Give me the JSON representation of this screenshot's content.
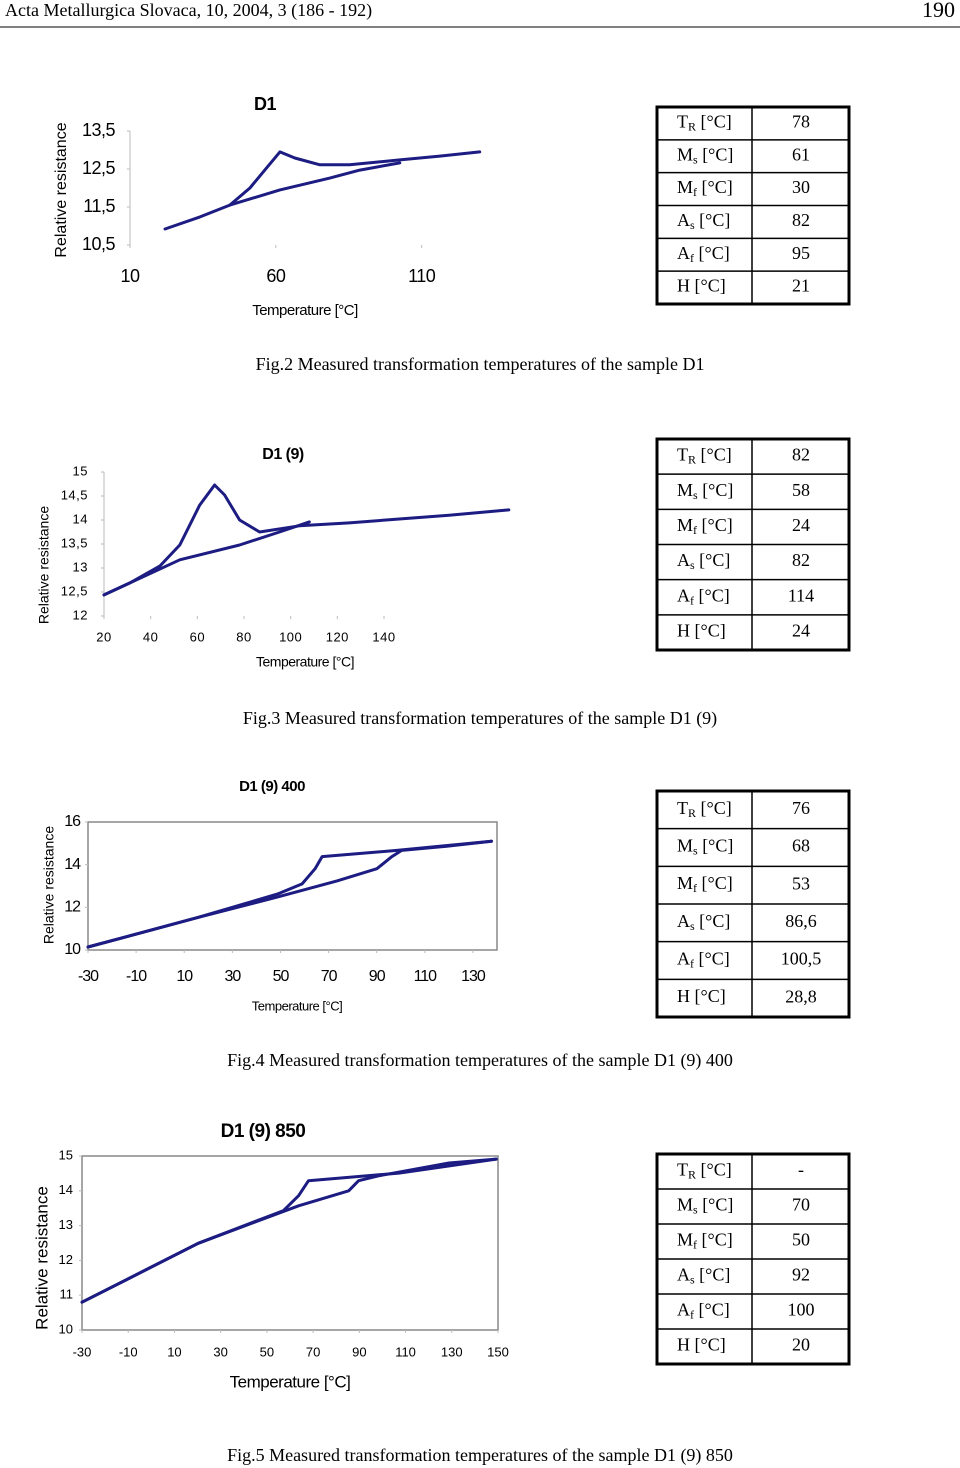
{
  "header": {
    "journal": "Acta Metallurgica Slovaca, 10, 2004, 3 (186 - 192)",
    "page": "190"
  },
  "chart_data": [
    {
      "type": "line",
      "title": "D1",
      "x_label": "Temperature [°C]",
      "y_label": "Relative resistance",
      "xlim": [
        10,
        130
      ],
      "xticks": [
        10,
        60,
        110
      ],
      "ylim": [
        10.5,
        13.5
      ],
      "yticks": [
        {
          "value": 10.5,
          "label": "10,5"
        },
        {
          "value": 11.5,
          "label": "11,5"
        },
        {
          "value": 12.5,
          "label": "12,5"
        },
        {
          "value": 13.5,
          "label": "13,5"
        }
      ],
      "frame": false,
      "series": [
        {
          "color": "#1c1c82",
          "x": [
            22,
            34,
            44.2,
            51.1,
            56.2,
            61.4,
            66.5,
            75.1,
            85.3,
            102.5,
            116.2,
            129.9
          ],
          "values": [
            10.92,
            11.24,
            11.55,
            12.0,
            12.47,
            12.95,
            12.79,
            12.61,
            12.61,
            12.74,
            12.84,
            12.95
          ]
        },
        {
          "color": "#1c1c82",
          "x": [
            44.2,
            61.4,
            78.5,
            88.8,
            102.5
          ],
          "values": [
            11.55,
            11.95,
            12.26,
            12.47,
            12.66
          ]
        }
      ]
    },
    {
      "type": "line",
      "title": "D1 (9)",
      "x_label": "Temperature [°C]",
      "y_label": "Relative resistance",
      "xlim": [
        20,
        194
      ],
      "xticks": [
        20,
        40,
        60,
        80,
        100,
        120,
        140
      ],
      "ylim": [
        12,
        15
      ],
      "yticks": [
        12,
        {
          "value": 12.5,
          "label": "12,5"
        },
        13,
        {
          "value": 13.5,
          "label": "13,5"
        },
        14,
        {
          "value": 14.5,
          "label": "14,5"
        },
        15
      ],
      "frame": false,
      "series": [
        {
          "color": "#1c1c82",
          "x": [
            20,
            31.1,
            43.9,
            52.5,
            61,
            67.4,
            71.7,
            78.1,
            86.7,
            103.8,
            125.1,
            146.5,
            167.9,
            193.5
          ],
          "values": [
            12.44,
            12.69,
            13.04,
            13.48,
            14.31,
            14.73,
            14.52,
            14.0,
            13.75,
            13.88,
            13.94,
            14.02,
            14.1,
            14.21
          ]
        },
        {
          "color": "#1c1c82",
          "x": [
            20,
            52.5,
            78.1,
            95.2,
            108
          ],
          "values": [
            12.44,
            13.17,
            13.48,
            13.75,
            13.96
          ]
        }
      ]
    },
    {
      "type": "line",
      "title": "D1 (9) 400",
      "x_label": "Temperature [°C]",
      "y_label": "Relative resistance",
      "xlim": [
        -30,
        140
      ],
      "xticks": [
        -30,
        -10,
        10,
        30,
        50,
        70,
        90,
        110,
        130
      ],
      "ylim": [
        10,
        16
      ],
      "yticks": [
        10,
        12,
        14,
        16
      ],
      "frame": true,
      "series": [
        {
          "color": "#1c1c82",
          "x": [
            -30,
            15.5,
            48.7,
            73.5,
            90.1,
            96.3,
            100.4,
            119.1,
            137.7
          ],
          "values": [
            10.14,
            11.52,
            12.48,
            13.24,
            13.81,
            14.38,
            14.67,
            14.86,
            15.1
          ]
        },
        {
          "color": "#1c1c82",
          "x": [
            137.7,
            98.4,
            67.3,
            64.4,
            59,
            48.7,
            15.5,
            -30
          ],
          "values": [
            15.1,
            14.67,
            14.38,
            13.81,
            13.1,
            12.62,
            11.52,
            10.14
          ]
        }
      ]
    },
    {
      "type": "line",
      "title": "D1 (9) 850",
      "x_label": "Temperature [°C]",
      "y_label": "Relative resistance",
      "xlim": [
        -30,
        150
      ],
      "xticks": [
        -30,
        -10,
        10,
        30,
        50,
        70,
        90,
        110,
        130,
        150
      ],
      "ylim": [
        10,
        15
      ],
      "yticks": [
        10,
        11,
        12,
        13,
        14,
        15
      ],
      "frame": true,
      "series": [
        {
          "color": "#1c1c82",
          "x": [
            -30,
            20.3,
            63.7,
            85.4,
            89.7,
            98.4,
            128.8,
            149.2
          ],
          "values": [
            10.8,
            12.49,
            13.57,
            14.0,
            14.29,
            14.43,
            14.8,
            14.91
          ]
        },
        {
          "color": "#1c1c82",
          "x": [
            149.2,
            107.1,
            68,
            63.7,
            57.2,
            20.3,
            -30
          ],
          "values": [
            14.91,
            14.51,
            14.29,
            13.86,
            13.43,
            12.49,
            10.8
          ]
        }
      ]
    }
  ],
  "tables": [
    [
      {
        "symbol": "T",
        "sub": "R",
        "unit": " [°C]",
        "value": 78
      },
      {
        "symbol": "M",
        "sub": "s",
        "unit": " [°C]",
        "value": 61
      },
      {
        "symbol": "M",
        "sub": "f",
        "unit": " [°C]",
        "value": 30
      },
      {
        "symbol": "A",
        "sub": "s",
        "unit": " [°C]",
        "value": 82
      },
      {
        "symbol": "A",
        "sub": "f",
        "unit": " [°C]",
        "value": 95
      },
      {
        "symbol": "H",
        "unit": " [°C]",
        "value": 21
      }
    ],
    [
      {
        "symbol": "T",
        "sub": "R",
        "unit": " [°C]",
        "value": 82
      },
      {
        "symbol": "M",
        "sub": "s",
        "unit": " [°C]",
        "value": 58
      },
      {
        "symbol": "M",
        "sub": "f",
        "unit": " [°C]",
        "value": 24
      },
      {
        "symbol": "A",
        "sub": "s",
        "unit": " [°C]",
        "value": 82
      },
      {
        "symbol": "A",
        "sub": "f",
        "unit": " [°C]",
        "value": 114
      },
      {
        "symbol": "H",
        "unit": " [°C]",
        "value": 24
      }
    ],
    [
      {
        "symbol": "T",
        "sub": "R",
        "unit": " [°C]",
        "value": 76
      },
      {
        "symbol": "M",
        "sub": "s",
        "unit": " [°C]",
        "value": 68
      },
      {
        "symbol": "M",
        "sub": "f",
        "unit": " [°C]",
        "value": 53
      },
      {
        "symbol": "A",
        "sub": "s",
        "unit": " [°C]",
        "value": "86,6"
      },
      {
        "symbol": "A",
        "sub": "f",
        "unit": " [°C]",
        "value": "100,5"
      },
      {
        "symbol": "H",
        "unit": " [°C]",
        "value": "28,8"
      }
    ],
    [
      {
        "symbol": "T",
        "sub": "R",
        "unit": " [°C]",
        "value": "-"
      },
      {
        "symbol": "M",
        "sub": "s",
        "unit": " [°C]",
        "value": 70
      },
      {
        "symbol": "M",
        "sub": "f",
        "unit": " [°C]",
        "value": 50
      },
      {
        "symbol": "A",
        "sub": "s",
        "unit": " [°C]",
        "value": 92
      },
      {
        "symbol": "A",
        "sub": "f",
        "unit": " [°C]",
        "value": 100
      },
      {
        "symbol": "H",
        "unit": " [°C]",
        "value": 20
      }
    ]
  ],
  "captions": [
    "Fig.2 Measured transformation temperatures of the sample D1",
    "Fig.3 Measured transformation temperatures of the sample D1 (9)",
    "Fig.4 Measured transformation temperatures of the sample D1 (9) 400",
    "Fig.5 Measured transformation temperatures of the sample D1 (9) 850"
  ]
}
